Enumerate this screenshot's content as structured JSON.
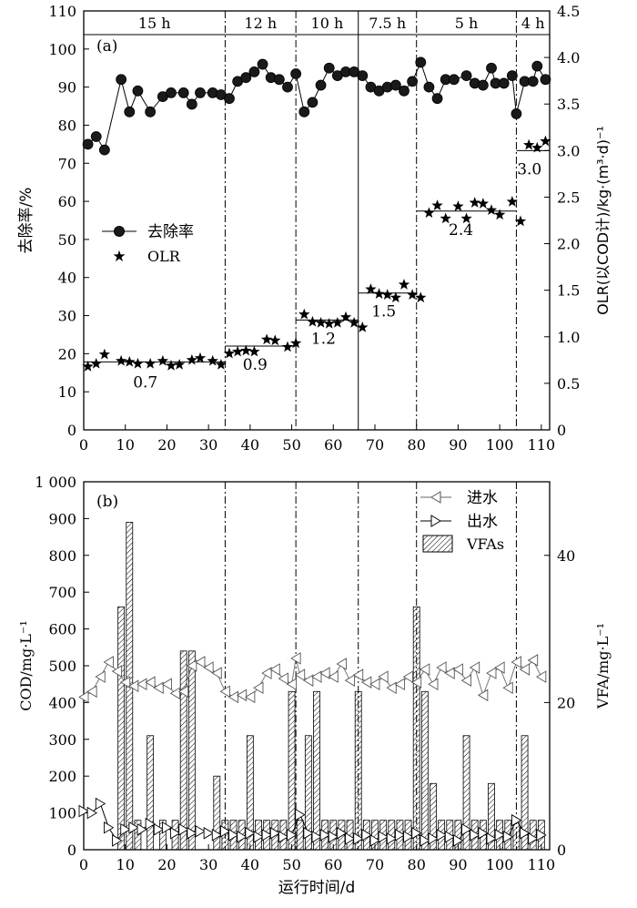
{
  "x_axis_label": "运行时间/d",
  "chart_data": [
    {
      "type": "line",
      "panel_label": "(a)",
      "ylabel": "去除率/%",
      "ylabel_right": "OLR(以COD计)/kg·(m³·d)⁻¹",
      "xlim": [
        0,
        112
      ],
      "ylim": [
        0,
        110
      ],
      "ylim_right": [
        0,
        4.5
      ],
      "x_ticks": [
        0,
        10,
        20,
        30,
        40,
        50,
        60,
        70,
        80,
        90,
        100,
        110
      ],
      "y_ticks": [
        0,
        10,
        20,
        30,
        40,
        50,
        60,
        70,
        80,
        90,
        100,
        110
      ],
      "y_ticks_right": [
        "0",
        "0.5",
        "1.0",
        "1.5",
        "2.0",
        "2.5",
        "3.0",
        "3.5",
        "4.0",
        "4.5"
      ],
      "grid": false,
      "legend_position": "middle-left",
      "phase_labels": [
        "15 h",
        "12 h",
        "10 h",
        "7.5 h",
        "5 h",
        "4 h"
      ],
      "phase_boundaries": [
        34,
        51,
        66,
        80,
        104
      ],
      "series": [
        {
          "name": "去除率",
          "axis": "left",
          "x": [
            1,
            3,
            5,
            9,
            11,
            13,
            16,
            19,
            21,
            24,
            26,
            28,
            31,
            33,
            35,
            37,
            39,
            41,
            43,
            45,
            47,
            49,
            51,
            53,
            55,
            57,
            59,
            61,
            63,
            65,
            67,
            69,
            71,
            73,
            75,
            77,
            79,
            81,
            83,
            85,
            87,
            89,
            92,
            94,
            96,
            98,
            99,
            101,
            103,
            104,
            106,
            108,
            109,
            111
          ],
          "values": [
            75,
            77,
            73.5,
            92,
            83.5,
            89,
            83.5,
            87.5,
            88.5,
            88.5,
            85.5,
            88.5,
            88.5,
            88,
            87,
            91.5,
            92.5,
            94,
            96,
            92.5,
            92,
            90,
            93.5,
            83.5,
            86,
            90.5,
            95,
            93,
            94,
            94,
            93,
            90,
            89,
            90,
            90.5,
            89,
            91.5,
            96.5,
            90,
            87,
            92,
            92,
            93,
            91,
            90.5,
            95,
            91,
            91,
            93,
            83,
            91.5,
            91.5,
            95.5,
            92
          ]
        },
        {
          "name": "OLR",
          "axis": "right",
          "x": [
            1,
            3,
            5,
            9,
            11,
            13,
            16,
            19,
            21,
            23,
            26,
            28,
            31,
            33,
            35,
            37,
            39,
            41,
            44,
            46,
            49,
            51,
            53,
            55,
            57,
            59,
            61,
            63,
            65,
            67,
            69,
            71,
            73,
            75,
            77,
            79,
            81,
            83,
            85,
            87,
            90,
            92,
            94,
            96,
            98,
            100,
            103,
            105,
            107,
            109,
            111
          ],
          "values": [
            0.68,
            0.71,
            0.81,
            0.74,
            0.73,
            0.71,
            0.71,
            0.74,
            0.69,
            0.7,
            0.75,
            0.77,
            0.74,
            0.7,
            0.82,
            0.84,
            0.85,
            0.84,
            0.97,
            0.96,
            0.89,
            0.93,
            1.24,
            1.16,
            1.15,
            1.14,
            1.15,
            1.21,
            1.15,
            1.1,
            1.51,
            1.46,
            1.45,
            1.42,
            1.56,
            1.45,
            1.42,
            2.33,
            2.41,
            2.27,
            2.4,
            2.27,
            2.44,
            2.43,
            2.36,
            2.31,
            2.45,
            2.24,
            3.06,
            3.03,
            3.1
          ]
        }
      ],
      "olr_levels": [
        {
          "label": "0.7",
          "value": 0.73,
          "x_start": 0,
          "x_end": 34
        },
        {
          "label": "0.9",
          "value": 0.9,
          "x_start": 34,
          "x_end": 51
        },
        {
          "label": "1.2",
          "value": 1.18,
          "x_start": 51,
          "x_end": 66
        },
        {
          "label": "1.5",
          "value": 1.47,
          "x_start": 66,
          "x_end": 80
        },
        {
          "label": "2.4",
          "value": 2.35,
          "x_start": 80,
          "x_end": 104
        },
        {
          "label": "3.0",
          "value": 3.0,
          "x_start": 104,
          "x_end": 112
        }
      ]
    },
    {
      "type": "line",
      "panel_label": "(b)",
      "ylabel": "COD/mg·L⁻¹",
      "ylabel_right": "VFA/mg·L⁻¹",
      "xlim": [
        0,
        112
      ],
      "ylim": [
        0,
        1000
      ],
      "ylim_right": [
        0,
        50
      ],
      "x_ticks": [
        0,
        10,
        20,
        30,
        40,
        50,
        60,
        70,
        80,
        90,
        100,
        110
      ],
      "y_ticks": [
        "0",
        "100",
        "200",
        "300",
        "400",
        "500",
        "600",
        "700",
        "800",
        "900",
        "1 000"
      ],
      "y_ticks_right": [
        0,
        20,
        40
      ],
      "grid": false,
      "legend_position": "top-right",
      "phase_boundaries": [
        34,
        51,
        66,
        80,
        104
      ],
      "series": [
        {
          "name": "进水",
          "axis": "left",
          "x": [
            0,
            2,
            4,
            6,
            8,
            10,
            12,
            14,
            16,
            18,
            20,
            22,
            24,
            26,
            28,
            30,
            32,
            34,
            36,
            38,
            40,
            42,
            44,
            46,
            48,
            50,
            51,
            52,
            54,
            56,
            58,
            60,
            62,
            64,
            66,
            68,
            70,
            72,
            74,
            76,
            78,
            80,
            82,
            84,
            86,
            88,
            90,
            92,
            94,
            96,
            98,
            100,
            102,
            104,
            106,
            108,
            110
          ],
          "values": [
            415,
            430,
            470,
            510,
            485,
            455,
            445,
            450,
            455,
            440,
            450,
            425,
            430,
            500,
            510,
            495,
            480,
            430,
            415,
            420,
            415,
            440,
            480,
            490,
            465,
            450,
            520,
            475,
            460,
            470,
            480,
            470,
            505,
            460,
            475,
            455,
            450,
            470,
            440,
            450,
            470,
            455,
            490,
            450,
            495,
            480,
            490,
            460,
            495,
            420,
            480,
            495,
            440,
            510,
            490,
            515,
            470
          ]
        },
        {
          "name": "出水",
          "axis": "left",
          "x": [
            0,
            2,
            4,
            6,
            8,
            10,
            12,
            14,
            16,
            18,
            20,
            22,
            24,
            26,
            28,
            30,
            32,
            34,
            36,
            38,
            40,
            42,
            44,
            46,
            48,
            50,
            52,
            54,
            56,
            58,
            60,
            62,
            64,
            66,
            68,
            70,
            72,
            74,
            76,
            78,
            80,
            82,
            84,
            86,
            88,
            90,
            92,
            94,
            96,
            98,
            100,
            102,
            104,
            106,
            108,
            110
          ],
          "values": [
            105,
            100,
            125,
            60,
            25,
            55,
            60,
            55,
            70,
            55,
            60,
            45,
            55,
            45,
            50,
            45,
            40,
            50,
            40,
            35,
            45,
            35,
            40,
            45,
            35,
            40,
            95,
            45,
            35,
            40,
            35,
            45,
            30,
            30,
            40,
            25,
            35,
            30,
            40,
            35,
            45,
            25,
            30,
            40,
            35,
            25,
            55,
            40,
            45,
            30,
            40,
            35,
            80,
            45,
            30,
            40
          ]
        },
        {
          "name": "VFAs",
          "axis": "right",
          "type": "bar",
          "x": [
            9,
            11,
            13,
            16,
            19,
            22,
            24,
            26,
            32,
            34,
            36,
            38,
            40,
            42,
            44,
            46,
            48,
            50,
            52,
            54,
            56,
            58,
            60,
            62,
            64,
            66,
            68,
            70,
            72,
            74,
            76,
            78,
            80,
            82,
            84,
            86,
            88,
            90,
            92,
            94,
            96,
            98,
            100,
            102,
            104,
            106,
            108,
            110
          ],
          "values": [
            33,
            44.5,
            4,
            15.5,
            4,
            4,
            27,
            27,
            10,
            4,
            4,
            4,
            15.5,
            4,
            4,
            4,
            4,
            21.5,
            4,
            15.5,
            21.5,
            4,
            4,
            4,
            4,
            21.5,
            4,
            4,
            4,
            4,
            4,
            4,
            33,
            21.5,
            9,
            4,
            4,
            4,
            15.5,
            4,
            4,
            9,
            4,
            4,
            4,
            15.5,
            4,
            4
          ]
        }
      ]
    }
  ]
}
